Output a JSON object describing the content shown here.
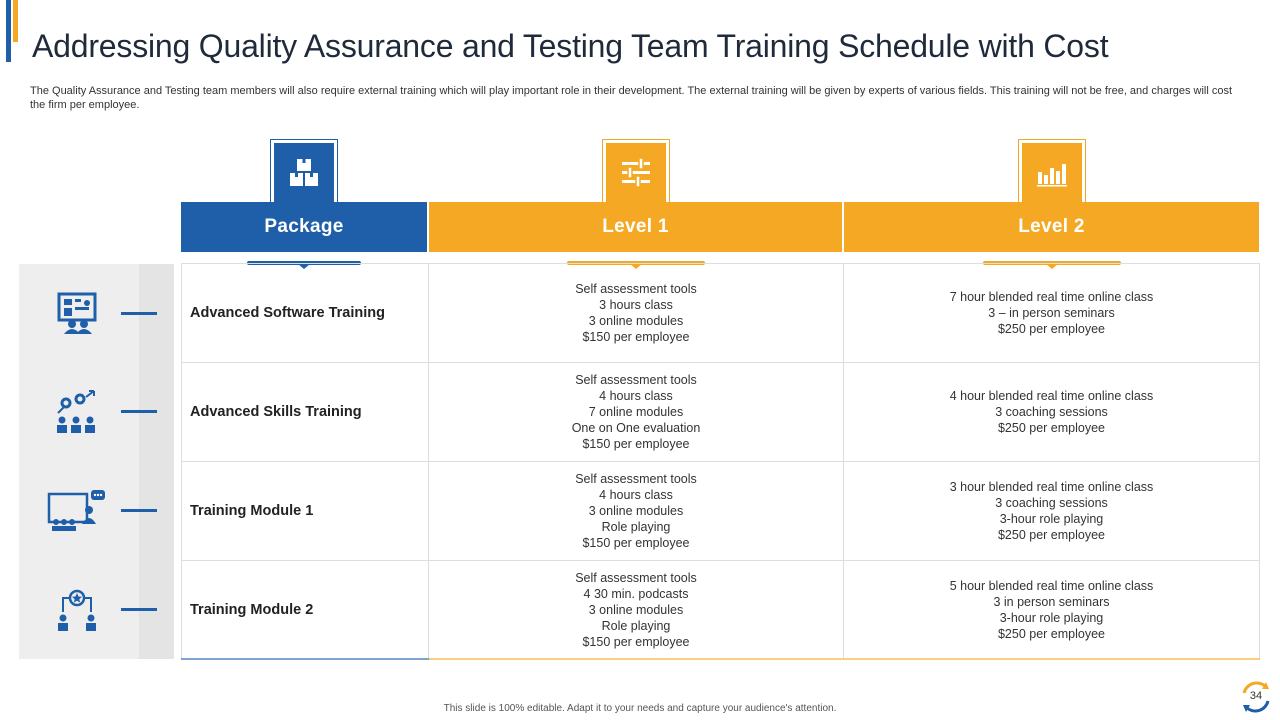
{
  "title": "Addressing Quality Assurance and Testing Team Training Schedule with Cost",
  "subtitle": "The Quality Assurance and Testing team members will also require external training which will play important role in their development. The external training will be given by experts of various fields. This training will not be free, and charges will cost the firm per employee.",
  "colors": {
    "blue": "#1f5fa9",
    "orange": "#f5a823"
  },
  "columns": [
    {
      "label": "Package",
      "icon": "boxes-icon"
    },
    {
      "label": "Level 1",
      "icon": "sliders-icon"
    },
    {
      "label": "Level 2",
      "icon": "bar-chart-icon"
    }
  ],
  "rows": [
    {
      "icon": "presentation-board-icon",
      "package": "Advanced Software Training",
      "level1": [
        "Self assessment tools",
        "3 hours class",
        "3 online modules",
        "$150 per employee"
      ],
      "level2": [
        "7 hour blended real time online class",
        "3 – in person seminars",
        "$250 per employee"
      ]
    },
    {
      "icon": "gears-team-icon",
      "package": "Advanced Skills Training",
      "level1": [
        "Self assessment tools",
        "4 hours class",
        "7 online modules",
        "One on One evaluation",
        "$150 per employee"
      ],
      "level2": [
        "4 hour blended real time online class",
        "3 coaching sessions",
        "$250 per employee"
      ]
    },
    {
      "icon": "classroom-icon",
      "package": "Training Module 1",
      "level1": [
        "Self assessment tools",
        "4 hours class",
        "3 online modules",
        "Role playing",
        "$150 per employee"
      ],
      "level2": [
        "3 hour blended real time online class",
        "3 coaching sessions",
        "3-hour role playing",
        "$250 per employee"
      ]
    },
    {
      "icon": "star-mentor-icon",
      "package": "Training Module 2",
      "level1": [
        "Self assessment tools",
        "4 30 min. podcasts",
        "3 online modules",
        "Role playing",
        "$150 per employee"
      ],
      "level2": [
        "5 hour blended real time online class",
        "3 in person seminars",
        "3-hour role playing",
        "$250 per employee"
      ]
    }
  ],
  "footer": "This slide is 100% editable. Adapt it to your needs and capture your audience's attention.",
  "page_number": "34"
}
